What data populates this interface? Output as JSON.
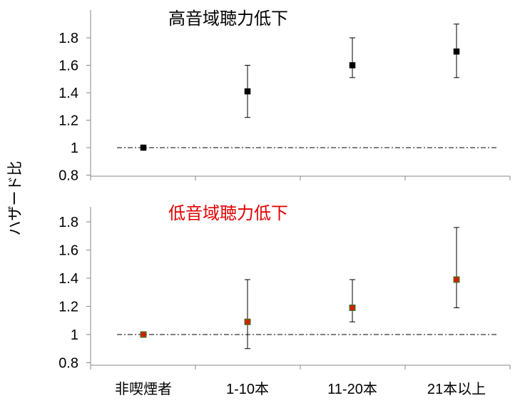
{
  "ylabel": "ハザード比",
  "colors": {
    "axis": "#000000",
    "marker_top": "#000000",
    "marker_bottom": "#cc2200",
    "title_top": "#000000",
    "title_bottom": "#e00000"
  },
  "chart_data": [
    {
      "type": "scatter",
      "title": "高音域聴力低下",
      "categories": [
        "非喫煙者",
        "1-10本",
        "11-20本",
        "21本以上"
      ],
      "series": [
        {
          "values": [
            1.0,
            1.41,
            1.6,
            1.7
          ],
          "error_low": [
            null,
            1.22,
            1.51,
            1.51
          ],
          "error_high": [
            null,
            1.6,
            1.8,
            1.9
          ]
        }
      ],
      "reference_line": 1.0,
      "ylim": [
        0.8,
        2.0
      ],
      "yticks": [
        "0.8",
        "1",
        "1.2",
        "1.4",
        "1.6",
        "1.8"
      ]
    },
    {
      "type": "scatter",
      "title": "低音域聴力低下",
      "categories": [
        "非喫煙者",
        "1-10本",
        "11-20本",
        "21本以上"
      ],
      "series": [
        {
          "values": [
            1.0,
            1.09,
            1.19,
            1.39
          ],
          "error_low": [
            null,
            0.9,
            1.09,
            1.19
          ],
          "error_high": [
            null,
            1.39,
            1.39,
            1.76
          ]
        }
      ],
      "reference_line": 1.0,
      "ylim": [
        0.8,
        1.85
      ],
      "yticks": [
        "0.8",
        "1",
        "1.2",
        "1.4",
        "1.6",
        "1.8"
      ]
    }
  ]
}
